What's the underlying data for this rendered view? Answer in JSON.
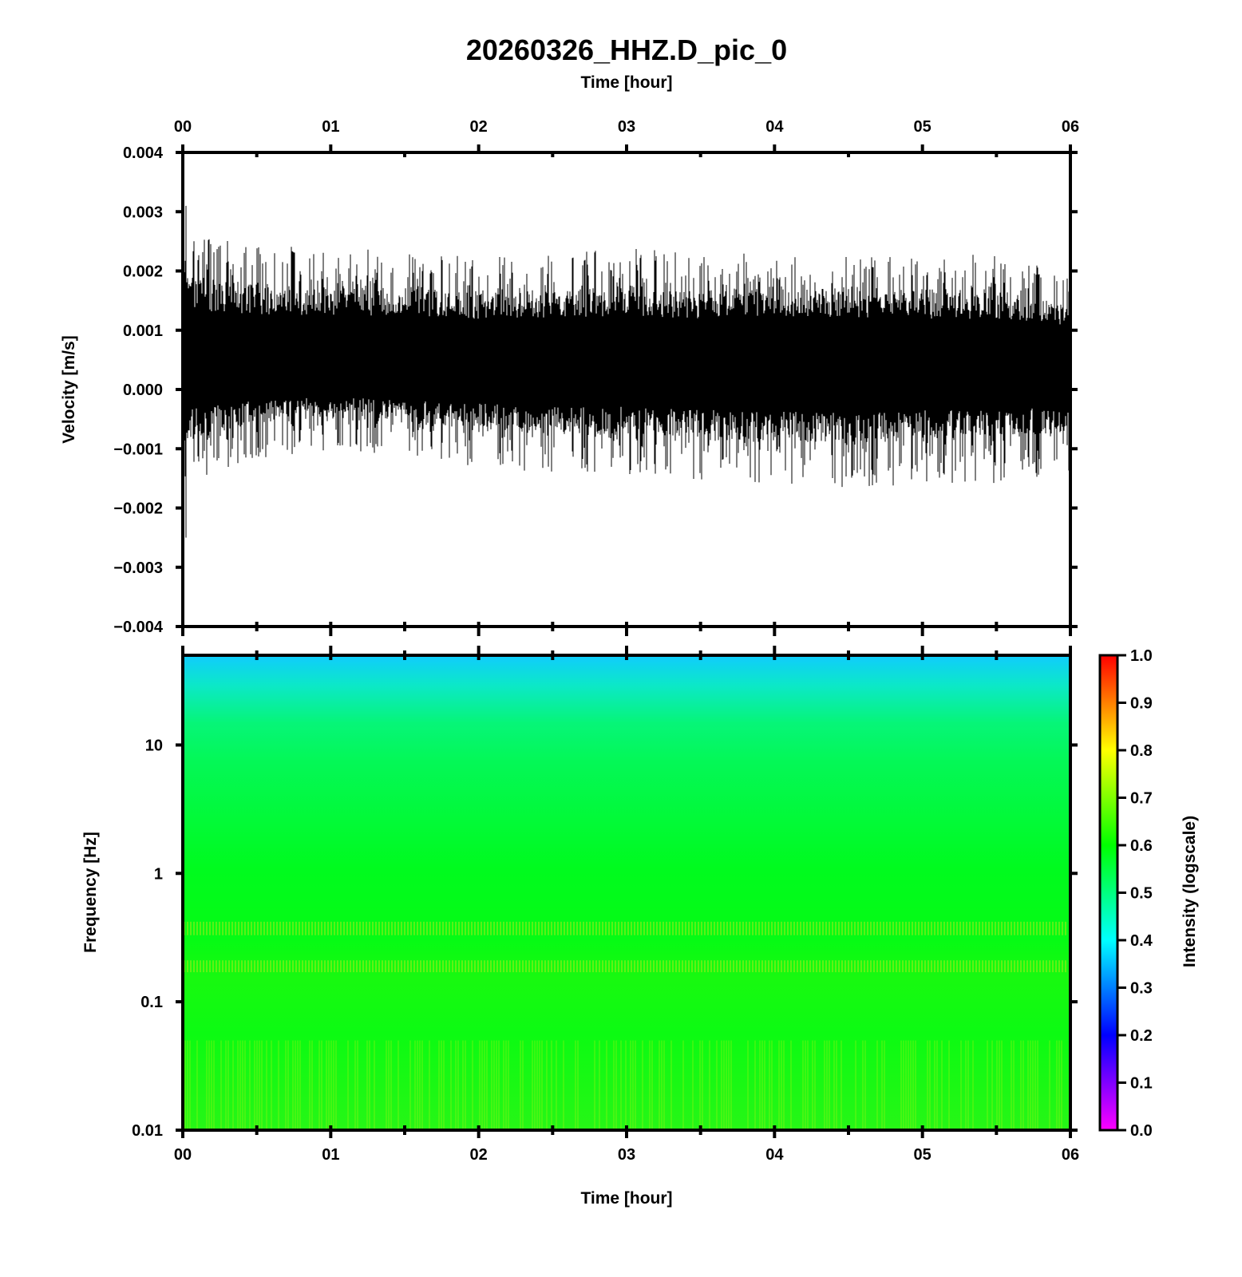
{
  "chart_data": [
    {
      "type": "line",
      "title": "20260326_HHZ.D_pic_0",
      "xlabel": "Time [hour]",
      "ylabel": "Velocity [m/s]",
      "x_ticks": [
        "00",
        "01",
        "02",
        "03",
        "04",
        "05",
        "06"
      ],
      "xlim": [
        0,
        6
      ],
      "y_ticks": [
        "0.004",
        "0.003",
        "0.002",
        "0.001",
        "0.000",
        "−0.001",
        "−0.002",
        "−0.003",
        "−0.004"
      ],
      "ylim": [
        -0.004,
        0.004
      ],
      "series": [
        {
          "color": "#000000",
          "x": [
            0.0,
            0.5,
            1.0,
            1.5,
            2.0,
            2.5,
            3.0,
            3.5,
            4.0,
            4.5,
            5.0,
            5.5,
            6.0
          ],
          "upper_envelope": [
            0.0021,
            0.0019,
            0.0019,
            0.0019,
            0.0018,
            0.0018,
            0.0019,
            0.0018,
            0.0019,
            0.0018,
            0.0018,
            0.0018,
            0.0016
          ],
          "lower_envelope": [
            -0.001,
            -0.0007,
            -0.0006,
            -0.0007,
            -0.0008,
            -0.0009,
            -0.0009,
            -0.001,
            -0.001,
            -0.0011,
            -0.001,
            -0.001,
            -0.0009
          ],
          "peak_max": 0.0031,
          "peak_min": -0.0025
        }
      ],
      "grid": false
    },
    {
      "type": "heatmap",
      "xlabel": "Time [hour]",
      "ylabel": "Frequency [Hz]",
      "x_ticks": [
        "00",
        "01",
        "02",
        "03",
        "04",
        "05",
        "06"
      ],
      "xlim": [
        0,
        6
      ],
      "y_scale": "log",
      "y_ticks": [
        "10",
        "1",
        "0.1",
        "0.01"
      ],
      "ylim": [
        0.01,
        50
      ],
      "colorbar": {
        "label": "Intensity (logscale)",
        "ticks": [
          "1.0",
          "0.9",
          "0.8",
          "0.7",
          "0.6",
          "0.5",
          "0.4",
          "0.3",
          "0.2",
          "0.1",
          "0.0"
        ],
        "range": [
          0,
          1
        ],
        "colors": [
          "#ff00ff",
          "#0000ff",
          "#00ffff",
          "#00ff00",
          "#ffff00",
          "#ff0000"
        ]
      },
      "intensity_profile": {
        "frequency_hz": [
          50,
          30,
          10,
          3,
          1,
          0.5,
          0.2,
          0.1,
          0.03,
          0.01
        ],
        "intensity": [
          0.42,
          0.5,
          0.6,
          0.62,
          0.63,
          0.64,
          0.66,
          0.64,
          0.64,
          0.66
        ]
      }
    }
  ]
}
